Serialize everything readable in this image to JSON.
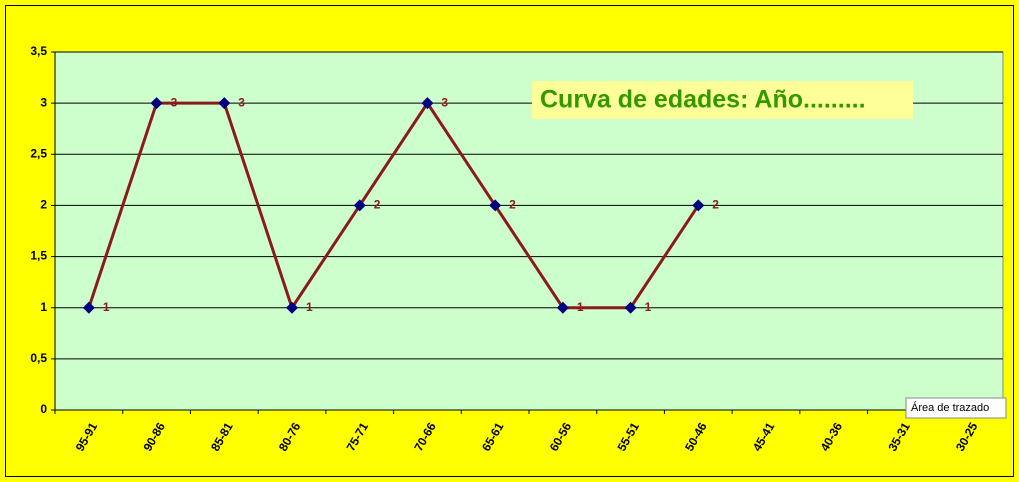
{
  "chart_data": {
    "type": "line",
    "title": "Curva de edades: Año.........",
    "categories": [
      "95-91",
      "90-86",
      "85-81",
      "80-76",
      "75-71",
      "70-66",
      "65-61",
      "60-56",
      "55-51",
      "50-46",
      "45-41",
      "40-36",
      "35-31",
      "30-25"
    ],
    "series": [
      {
        "name": null,
        "color": "#8b1a1a",
        "marker_color": "#000080",
        "values": [
          1,
          3,
          3,
          1,
          2,
          3,
          2,
          1,
          1,
          2,
          null,
          null,
          null,
          null
        ]
      }
    ],
    "ylim": [
      0,
      3.5
    ],
    "yticks": [
      0,
      {
        "value": 0.5,
        "label": "0,5"
      },
      1,
      {
        "value": 1.5,
        "label": "1,5"
      },
      2,
      {
        "value": 2.5,
        "label": "2,5"
      },
      3,
      {
        "value": 3.5,
        "label": "3,5"
      }
    ],
    "grid": true,
    "data_labels": true,
    "tooltip": "Área de trazado"
  }
}
